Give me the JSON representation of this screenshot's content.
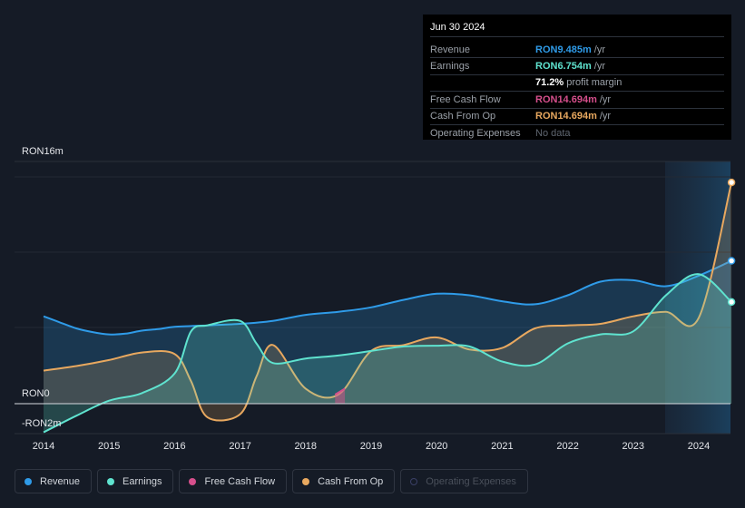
{
  "tooltip": {
    "date": "Jun 30 2024",
    "rows": [
      {
        "label": "Revenue",
        "value": "RON9.485m",
        "unit": "/yr",
        "color": "#2f9be8"
      },
      {
        "label": "Earnings",
        "value": "RON6.754m",
        "unit": "/yr",
        "color": "#5fe3cf"
      },
      {
        "label": "",
        "value": "71.2%",
        "unit": "profit margin",
        "color": "#ffffff"
      },
      {
        "label": "Free Cash Flow",
        "value": "RON14.694m",
        "unit": "/yr",
        "color": "#d64f8c"
      },
      {
        "label": "Cash From Op",
        "value": "RON14.694m",
        "unit": "/yr",
        "color": "#e8a85f"
      },
      {
        "label": "Operating Expenses",
        "value": "No data",
        "unit": "",
        "color": "#5f6670"
      }
    ]
  },
  "legend": [
    {
      "label": "Revenue",
      "color": "#2f9be8",
      "active": true
    },
    {
      "label": "Earnings",
      "color": "#5fe3cf",
      "active": true
    },
    {
      "label": "Free Cash Flow",
      "color": "#d64f8c",
      "active": true
    },
    {
      "label": "Cash From Op",
      "color": "#e8a85f",
      "active": true
    },
    {
      "label": "Operating Expenses",
      "color": "#3a3f66",
      "active": false
    }
  ],
  "chart_data": {
    "type": "area",
    "title": "",
    "xlabel": "",
    "ylabel": "",
    "currency": "RON",
    "ylim": [
      -2,
      16
    ],
    "y_tick_labels": [
      {
        "value": 16,
        "label": "RON16m"
      },
      {
        "value": 0,
        "label": "RON0"
      },
      {
        "value": -2,
        "label": "-RON2m"
      }
    ],
    "x_tick_labels": [
      "2014",
      "2015",
      "2016",
      "2017",
      "2018",
      "2019",
      "2020",
      "2021",
      "2022",
      "2023",
      "2024"
    ],
    "xlim": [
      2013.55,
      2024.5
    ],
    "forecast_region_start": 2023.5,
    "series": [
      {
        "name": "Revenue",
        "color": "#2f9be8",
        "points": [
          [
            2014.0,
            5.8
          ],
          [
            2014.25,
            5.4
          ],
          [
            2014.5,
            5.0
          ],
          [
            2014.75,
            4.75
          ],
          [
            2015.0,
            4.6
          ],
          [
            2015.25,
            4.65
          ],
          [
            2015.5,
            4.85
          ],
          [
            2015.75,
            4.95
          ],
          [
            2016.0,
            5.1
          ],
          [
            2016.5,
            5.2
          ],
          [
            2017.0,
            5.3
          ],
          [
            2017.5,
            5.5
          ],
          [
            2018.0,
            5.9
          ],
          [
            2018.5,
            6.1
          ],
          [
            2019.0,
            6.4
          ],
          [
            2019.5,
            6.9
          ],
          [
            2020.0,
            7.3
          ],
          [
            2020.5,
            7.2
          ],
          [
            2021.0,
            6.8
          ],
          [
            2021.5,
            6.6
          ],
          [
            2022.0,
            7.2
          ],
          [
            2022.5,
            8.1
          ],
          [
            2023.0,
            8.2
          ],
          [
            2023.5,
            7.8
          ],
          [
            2024.0,
            8.5
          ],
          [
            2024.5,
            9.485
          ]
        ]
      },
      {
        "name": "Earnings",
        "color": "#5fe3cf",
        "points": [
          [
            2014.0,
            -1.9
          ],
          [
            2014.5,
            -0.8
          ],
          [
            2015.0,
            0.2
          ],
          [
            2015.5,
            0.7
          ],
          [
            2016.0,
            2.0
          ],
          [
            2016.25,
            4.8
          ],
          [
            2016.5,
            5.2
          ],
          [
            2017.0,
            5.5
          ],
          [
            2017.25,
            4.0
          ],
          [
            2017.5,
            2.7
          ],
          [
            2018.0,
            3.0
          ],
          [
            2018.5,
            3.2
          ],
          [
            2019.0,
            3.5
          ],
          [
            2019.5,
            3.8
          ],
          [
            2020.0,
            3.85
          ],
          [
            2020.5,
            3.8
          ],
          [
            2021.0,
            2.8
          ],
          [
            2021.5,
            2.6
          ],
          [
            2022.0,
            4.0
          ],
          [
            2022.5,
            4.6
          ],
          [
            2023.0,
            4.8
          ],
          [
            2023.5,
            7.2
          ],
          [
            2024.0,
            8.6
          ],
          [
            2024.5,
            6.754
          ]
        ]
      },
      {
        "name": "Free Cash Flow",
        "color": "#d64f8c",
        "points": [
          [
            2018.45,
            0.6
          ],
          [
            2018.6,
            1.0
          ]
        ]
      },
      {
        "name": "Cash From Op",
        "color": "#e8a85f",
        "points": [
          [
            2014.0,
            2.2
          ],
          [
            2014.5,
            2.5
          ],
          [
            2015.0,
            2.9
          ],
          [
            2015.5,
            3.4
          ],
          [
            2016.0,
            3.3
          ],
          [
            2016.25,
            1.5
          ],
          [
            2016.5,
            -0.9
          ],
          [
            2017.0,
            -0.7
          ],
          [
            2017.25,
            1.8
          ],
          [
            2017.5,
            3.9
          ],
          [
            2018.0,
            1.0
          ],
          [
            2018.5,
            0.6
          ],
          [
            2019.0,
            3.5
          ],
          [
            2019.5,
            3.9
          ],
          [
            2020.0,
            4.4
          ],
          [
            2020.5,
            3.6
          ],
          [
            2021.0,
            3.7
          ],
          [
            2021.5,
            5.0
          ],
          [
            2022.0,
            5.2
          ],
          [
            2022.5,
            5.3
          ],
          [
            2023.0,
            5.8
          ],
          [
            2023.5,
            6.1
          ],
          [
            2024.0,
            5.7
          ],
          [
            2024.5,
            14.694
          ]
        ]
      }
    ]
  }
}
